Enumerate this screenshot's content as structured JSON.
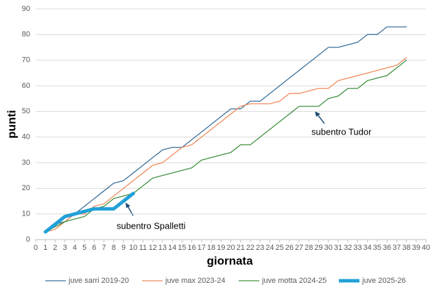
{
  "chart_data": {
    "type": "line",
    "x_label": "giornata",
    "y_label": "punti",
    "x": [
      1,
      2,
      3,
      4,
      5,
      6,
      7,
      8,
      9,
      10,
      11,
      12,
      13,
      14,
      15,
      16,
      17,
      18,
      19,
      20,
      21,
      22,
      23,
      24,
      25,
      26,
      27,
      28,
      29,
      30,
      31,
      32,
      33,
      34,
      35,
      36,
      37,
      38
    ],
    "xlim": [
      0,
      40
    ],
    "xticks": [
      0,
      1,
      2,
      3,
      4,
      5,
      6,
      7,
      8,
      9,
      10,
      11,
      12,
      13,
      14,
      15,
      16,
      17,
      18,
      19,
      20,
      21,
      22,
      23,
      24,
      25,
      26,
      27,
      28,
      29,
      30,
      31,
      32,
      33,
      34,
      35,
      36,
      37,
      38,
      39,
      40
    ],
    "ylim": [
      0,
      90
    ],
    "yticks": [
      0,
      10,
      20,
      30,
      40,
      50,
      60,
      70,
      80,
      90
    ],
    "grid": true,
    "legend": "bottom",
    "series": [
      {
        "name": "juve sarri 2019-20",
        "color": "#3a6f9b",
        "width": 1.3,
        "values": [
          3,
          6,
          7,
          10,
          13,
          16,
          19,
          22,
          23,
          26,
          29,
          32,
          35,
          36,
          36,
          39,
          42,
          45,
          48,
          51,
          51,
          54,
          54,
          57,
          60,
          63,
          66,
          69,
          72,
          75,
          75,
          76,
          77,
          80,
          80,
          83,
          83,
          83
        ]
      },
      {
        "name": "juve max 2023-24",
        "color": "#f08a5a",
        "width": 1.3,
        "values": [
          3,
          4,
          7,
          10,
          10,
          13,
          14,
          17,
          20,
          23,
          26,
          29,
          30,
          33,
          36,
          37,
          40,
          43,
          46,
          49,
          52,
          53,
          53,
          53,
          54,
          57,
          57,
          58,
          59,
          59,
          62,
          63,
          64,
          65,
          66,
          67,
          68,
          71
        ]
      },
      {
        "name": "juve motta 2024-25",
        "color": "#3f8f3f",
        "width": 1.3,
        "values": [
          3,
          5,
          7,
          8,
          9,
          12,
          13,
          16,
          17,
          18,
          21,
          24,
          25,
          26,
          27,
          28,
          31,
          32,
          33,
          34,
          37,
          37,
          40,
          43,
          46,
          49,
          52,
          52,
          52,
          55,
          56,
          59,
          59,
          62,
          63,
          64,
          67,
          70
        ]
      },
      {
        "name": "juve 2025-26",
        "color": "#22a0d8",
        "width": 5,
        "values": [
          3,
          6,
          9,
          10,
          11,
          12,
          12,
          12,
          15,
          18,
          null,
          null,
          null,
          null,
          null,
          null,
          null,
          null,
          null,
          null,
          null,
          null,
          null,
          null,
          null,
          null,
          null,
          null,
          null,
          null,
          null,
          null,
          null,
          null,
          null,
          null,
          null,
          null
        ]
      }
    ],
    "annotations": [
      "subentro Spalletti",
      "subentro Tudor"
    ]
  }
}
